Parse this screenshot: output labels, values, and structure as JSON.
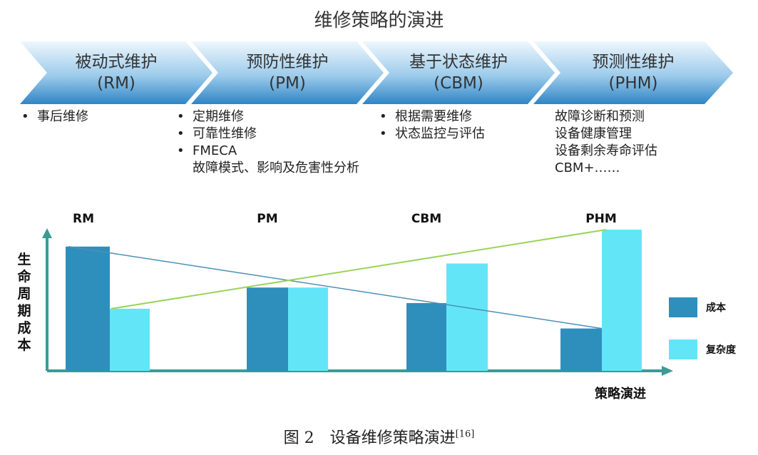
{
  "title": "维修策略的演进",
  "stages": [
    {
      "name": "被动式维护",
      "abbr": "(RM)",
      "notes": [
        "事后维修"
      ],
      "bullets": true
    },
    {
      "name": "预防性维护",
      "abbr": "(PM)",
      "notes": [
        "定期维修",
        "可靠性维修",
        "FMECA"
      ],
      "continuation": "故障模式、影响及危害性分析",
      "bullets": true
    },
    {
      "name": "基于状态维护",
      "abbr": "(CBM)",
      "notes": [
        "根据需要维修",
        "状态监控与评估"
      ],
      "bullets": true
    },
    {
      "name": "预测性维护",
      "abbr": "(PHM)",
      "notes": [
        "故障诊断和预测",
        "设备健康管理",
        "设备剩余寿命评估",
        "CBM+……"
      ],
      "bullets": false
    }
  ],
  "colors": {
    "chevron_dark": "#3a8fcf",
    "chevron_light": "#eaf4fb",
    "cost": "#2e8fbd",
    "complexity": "#62e6f7",
    "cost_line": "#4a90b8",
    "complexity_line": "#9bd35a",
    "axis": "#3d9a94"
  },
  "chart_data": {
    "type": "bar",
    "categories": [
      "RM",
      "PM",
      "CBM",
      "PHM"
    ],
    "series": [
      {
        "name": "成本",
        "values": [
          88,
          59,
          48,
          30
        ]
      },
      {
        "name": "复杂度",
        "values": [
          44,
          59,
          76,
          100
        ]
      }
    ],
    "ylabel": "生命周期成本",
    "xlabel": "策略演进",
    "trend_lines": true,
    "legend": "right"
  },
  "caption": {
    "text": "图 2　设备维修策略演进",
    "ref": "[16]"
  }
}
